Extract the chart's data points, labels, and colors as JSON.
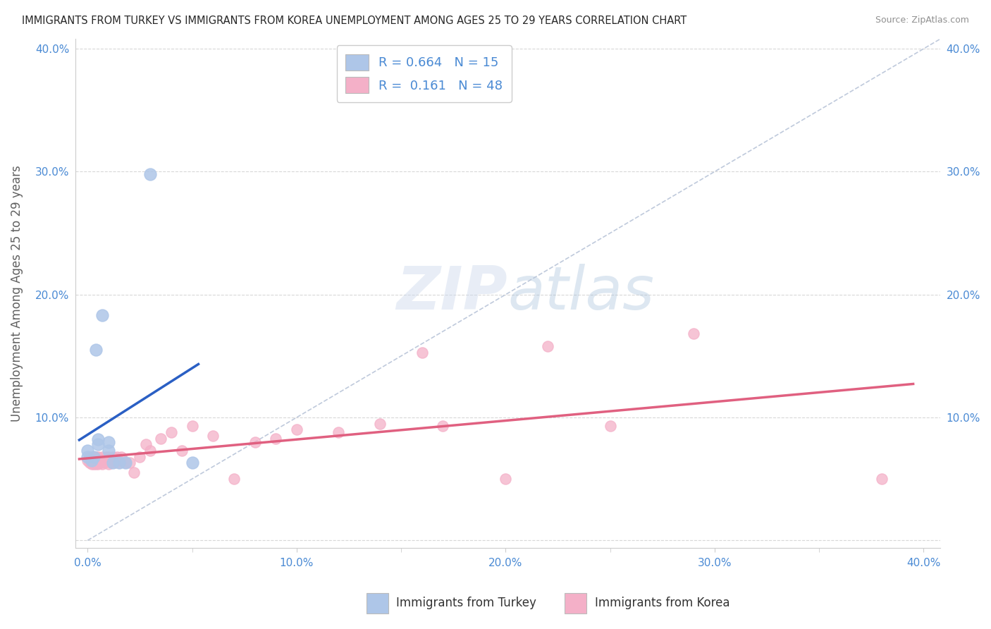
{
  "title": "IMMIGRANTS FROM TURKEY VS IMMIGRANTS FROM KOREA UNEMPLOYMENT AMONG AGES 25 TO 29 YEARS CORRELATION CHART",
  "source": "Source: ZipAtlas.com",
  "ylabel": "Unemployment Among Ages 25 to 29 years",
  "xlabel_turkey": "Immigrants from Turkey",
  "xlabel_korea": "Immigrants from Korea",
  "R_turkey": 0.664,
  "N_turkey": 15,
  "R_korea": 0.161,
  "N_korea": 48,
  "turkey_color": "#aec6e8",
  "korea_color": "#f4b0c8",
  "turkey_line_color": "#2a5fc4",
  "korea_line_color": "#e06080",
  "diag_line_color": "#b8c4d8",
  "background_color": "#ffffff",
  "grid_color": "#d4d4d4",
  "title_color": "#282828",
  "source_color": "#909090",
  "axis_label_color": "#606060",
  "tick_label_color": "#4a8ad4",
  "watermark_color": "#ccd8ec",
  "turkey_scatter_x": [
    0.0,
    0.0,
    0.002,
    0.003,
    0.004,
    0.005,
    0.005,
    0.007,
    0.01,
    0.01,
    0.012,
    0.015,
    0.018,
    0.03,
    0.05
  ],
  "turkey_scatter_y": [
    0.068,
    0.073,
    0.065,
    0.068,
    0.155,
    0.078,
    0.082,
    0.183,
    0.073,
    0.08,
    0.063,
    0.063,
    0.063,
    0.298,
    0.063
  ],
  "korea_scatter_x": [
    0.0,
    0.001,
    0.001,
    0.002,
    0.002,
    0.003,
    0.003,
    0.004,
    0.004,
    0.005,
    0.005,
    0.006,
    0.007,
    0.007,
    0.008,
    0.009,
    0.01,
    0.01,
    0.011,
    0.012,
    0.013,
    0.014,
    0.015,
    0.016,
    0.018,
    0.02,
    0.022,
    0.025,
    0.028,
    0.03,
    0.035,
    0.04,
    0.045,
    0.05,
    0.06,
    0.07,
    0.08,
    0.09,
    0.1,
    0.12,
    0.14,
    0.16,
    0.17,
    0.2,
    0.22,
    0.25,
    0.29,
    0.38
  ],
  "korea_scatter_y": [
    0.065,
    0.063,
    0.068,
    0.062,
    0.068,
    0.062,
    0.068,
    0.062,
    0.068,
    0.062,
    0.068,
    0.063,
    0.062,
    0.068,
    0.063,
    0.068,
    0.062,
    0.068,
    0.063,
    0.068,
    0.063,
    0.068,
    0.063,
    0.068,
    0.063,
    0.063,
    0.055,
    0.068,
    0.078,
    0.073,
    0.083,
    0.088,
    0.073,
    0.093,
    0.085,
    0.05,
    0.08,
    0.083,
    0.09,
    0.088,
    0.095,
    0.153,
    0.093,
    0.05,
    0.158,
    0.093,
    0.168,
    0.05
  ],
  "xlim_max": 0.4,
  "ylim_max": 0.4,
  "ticks": [
    0.0,
    0.1,
    0.2,
    0.3,
    0.4
  ]
}
